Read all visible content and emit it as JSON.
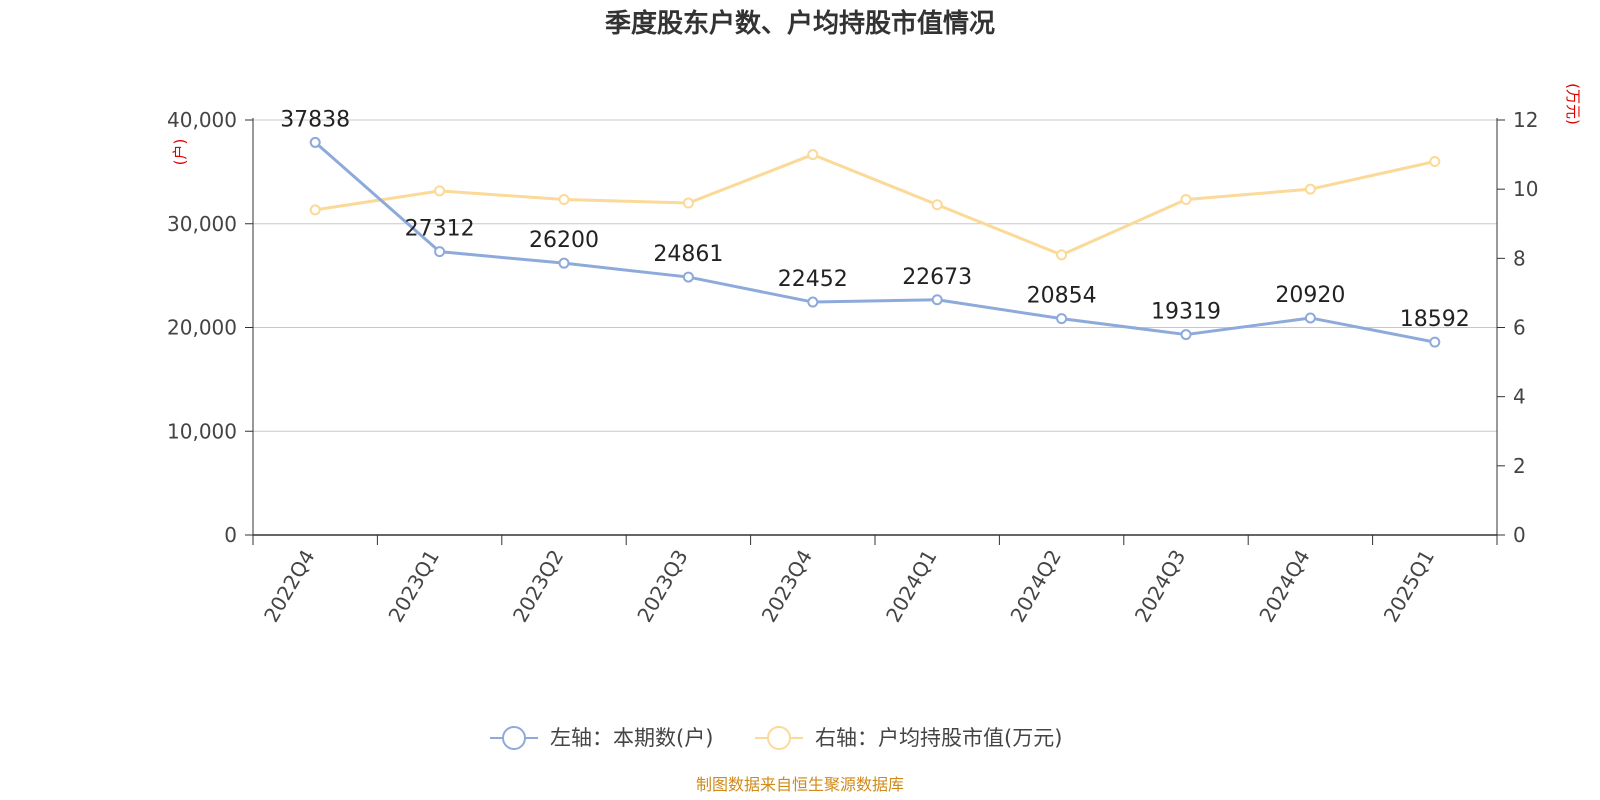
{
  "chart_data": {
    "type": "line",
    "title": "季度股东户数、户均持股市值情况",
    "categories": [
      "2022Q4",
      "2023Q1",
      "2023Q2",
      "2023Q3",
      "2023Q4",
      "2024Q1",
      "2024Q2",
      "2024Q3",
      "2024Q4",
      "2025Q1"
    ],
    "series": [
      {
        "name": "左轴：本期数(户)",
        "axis": "left",
        "color": "#8eaadb",
        "values": [
          37838,
          27312,
          26200,
          24861,
          22452,
          22673,
          20854,
          19319,
          20920,
          18592
        ],
        "data_labels": [
          "37838",
          "27312",
          "26200",
          "24861",
          "22452",
          "22673",
          "20854",
          "19319",
          "20920",
          "18592"
        ]
      },
      {
        "name": "右轴：户均持股市值(万元)",
        "axis": "right",
        "color": "#fbd998",
        "values": [
          9.4,
          9.95,
          9.7,
          9.6,
          11.0,
          9.55,
          8.1,
          9.7,
          10.0,
          10.8
        ]
      }
    ],
    "left_axis": {
      "unit": "(户)",
      "range": [
        0,
        40000
      ],
      "ticks": [
        0,
        10000,
        20000,
        30000,
        40000
      ],
      "tick_labels": [
        "0",
        "10,000",
        "20,000",
        "30,000",
        "40,000"
      ]
    },
    "right_axis": {
      "unit": "(万元)",
      "range": [
        0,
        12
      ],
      "ticks": [
        0,
        2,
        4,
        6,
        8,
        10,
        12
      ],
      "tick_labels": [
        "0",
        "2",
        "4",
        "6",
        "8",
        "10",
        "12"
      ]
    },
    "grid": true,
    "legend_position": "bottom"
  },
  "source": "制图数据来自恒生聚源数据库",
  "colors": {
    "left_series": "#8eaadb",
    "right_series": "#fbd998",
    "unit_label": "#e00000",
    "source_text": "#d08a1a",
    "grid": "#c8c8c8"
  }
}
